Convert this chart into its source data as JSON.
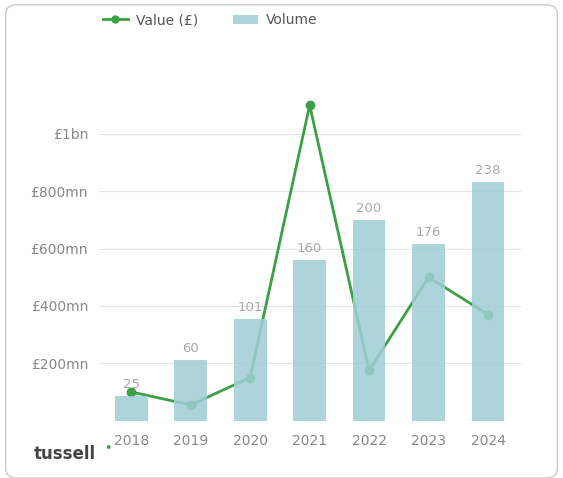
{
  "years": [
    2018,
    2019,
    2020,
    2021,
    2022,
    2023,
    2024
  ],
  "volume": [
    25,
    60,
    101,
    160,
    200,
    176,
    238
  ],
  "value_mn": [
    100,
    55,
    150,
    1100,
    175,
    500,
    370
  ],
  "bar_color": "#9ecdd4",
  "line_color": "#3ca044",
  "bar_label_color": "#aaaaaa",
  "ytick_labels": [
    "£200mn",
    "£400mn",
    "£600mn",
    "£800mn",
    "£1bn"
  ],
  "ytick_values": [
    200,
    400,
    600,
    800,
    1000
  ],
  "ymax": 1200,
  "vol_axis_max": 343,
  "legend_value_label": "Value (£)",
  "legend_volume_label": "Volume",
  "background_color": "#ffffff",
  "grid_color": "#e5e5e5",
  "tick_color": "#888888",
  "label_fontsize": 10,
  "tick_fontsize": 10,
  "bar_label_fontsize": 9.5,
  "line_width": 2.0,
  "marker_size": 6,
  "bar_width": 0.55
}
